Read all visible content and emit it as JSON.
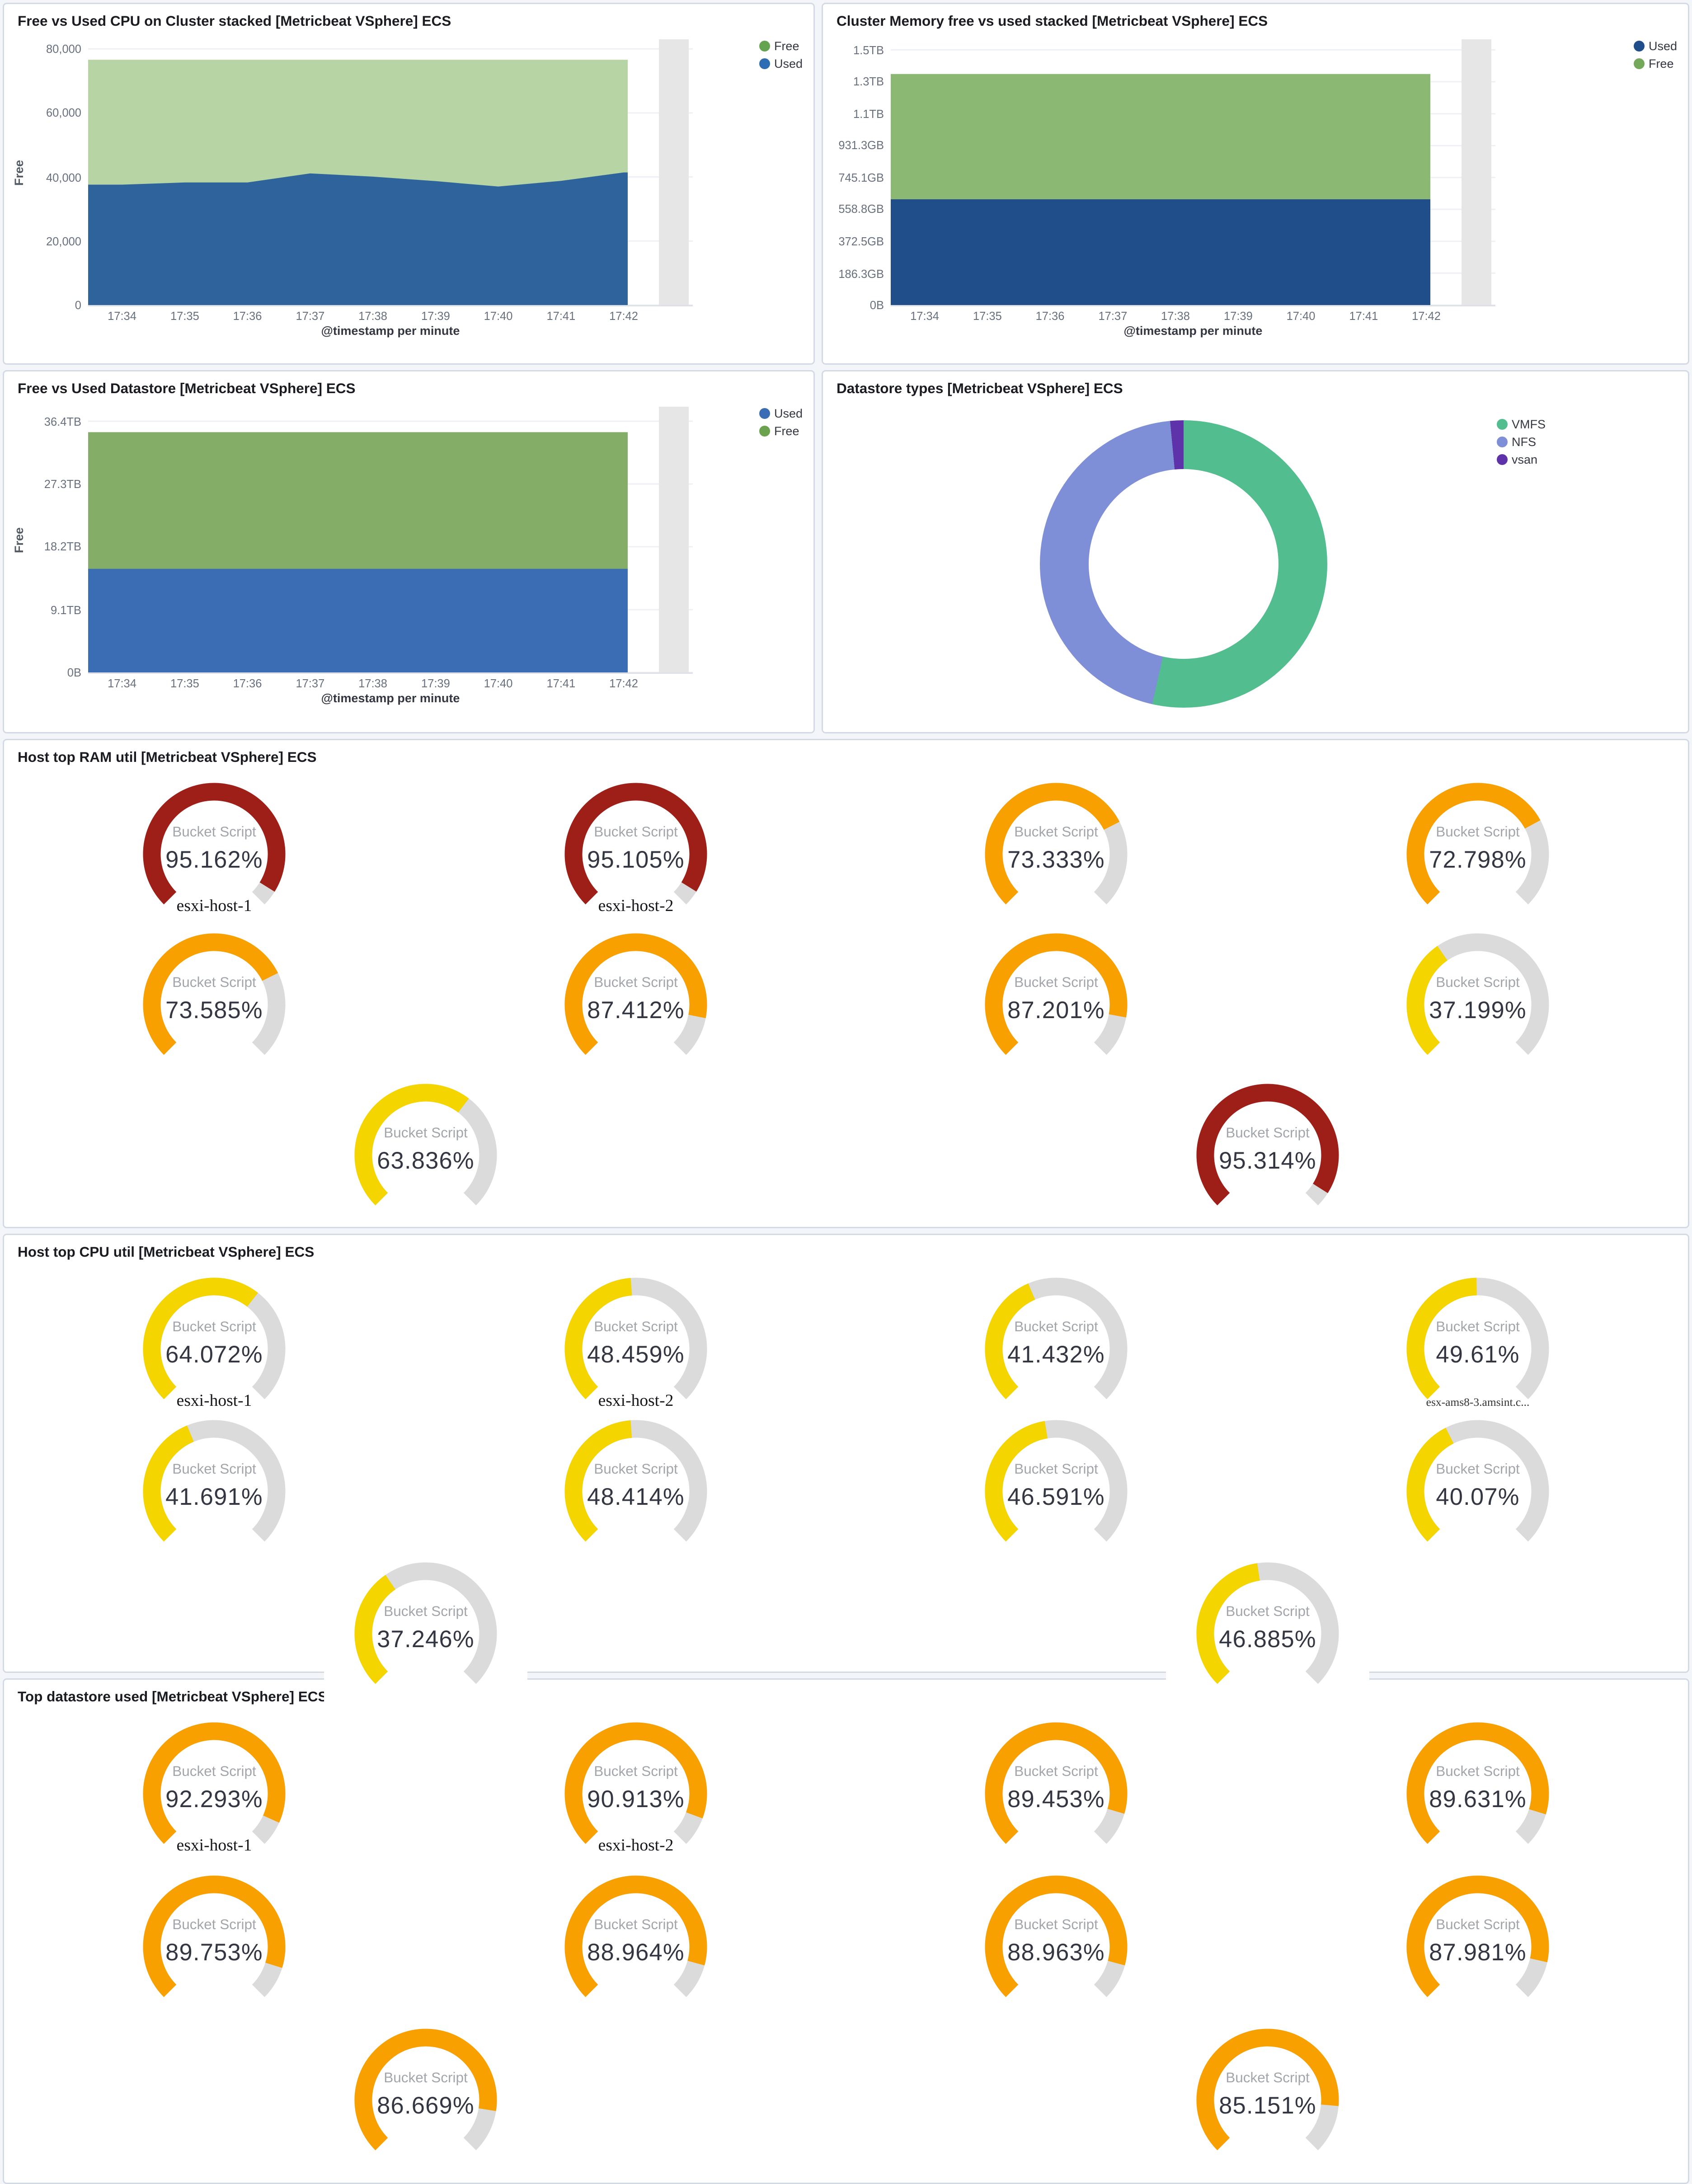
{
  "dashboard": {
    "partial_bucket_color": "#e6e6e6",
    "gauge_track_color": "#dbdbdb"
  },
  "chart_data": [
    {
      "id": "cpu-cluster-stacked",
      "type": "area",
      "title": "Free vs Used CPU on Cluster stacked [Metricbeat VSphere] ECS",
      "x": [
        "17:34",
        "17:35",
        "17:36",
        "17:37",
        "17:38",
        "17:39",
        "17:40",
        "17:41",
        "17:42"
      ],
      "xlabel": "@timestamp per minute",
      "ylabel": "Free",
      "ylim": [
        0,
        83000
      ],
      "grid": true,
      "partial_bucket": true,
      "yticks": [
        {
          "label": "80,000",
          "value": 80000
        },
        {
          "label": "60,000",
          "value": 60000
        },
        {
          "label": "40,000",
          "value": 40000
        },
        {
          "label": "20,000",
          "value": 20000
        },
        {
          "label": "0",
          "value": 0
        }
      ],
      "series": [
        {
          "name": "Used",
          "color": "#2f639b",
          "values": [
            37600,
            38300,
            38300,
            41100,
            40100,
            38700,
            37000,
            38800,
            41400
          ]
        },
        {
          "name": "Free",
          "color": "#b6d4a4",
          "values": [
            39000,
            38300,
            38300,
            35500,
            36500,
            37900,
            39600,
            37800,
            35200
          ]
        }
      ],
      "legend_position": "right",
      "legend": [
        {
          "label": "Free",
          "color": "#64a450"
        },
        {
          "label": "Used",
          "color": "#2f6db3"
        }
      ]
    },
    {
      "id": "cluster-memory-stacked",
      "type": "area",
      "title": "Cluster Memory free vs used stacked [Metricbeat VSphere] ECS",
      "x": [
        "17:34",
        "17:35",
        "17:36",
        "17:37",
        "17:38",
        "17:39",
        "17:40",
        "17:41",
        "17:42"
      ],
      "xlabel": "@timestamp per minute",
      "ylabel": "",
      "ylim": [
        0,
        1552
      ],
      "unit": "GB",
      "grid": true,
      "partial_bucket": true,
      "yticks": [
        {
          "label": "1.5TB",
          "value": 1490.1
        },
        {
          "label": "1.3TB",
          "value": 1303.8
        },
        {
          "label": "1.1TB",
          "value": 1117.6
        },
        {
          "label": "931.3GB",
          "value": 931.3
        },
        {
          "label": "745.1GB",
          "value": 745.1
        },
        {
          "label": "558.8GB",
          "value": 558.8
        },
        {
          "label": "372.5GB",
          "value": 372.5
        },
        {
          "label": "186.3GB",
          "value": 186.3
        },
        {
          "label": "0B",
          "value": 0
        }
      ],
      "series": [
        {
          "name": "Used",
          "color": "#1f4e8a",
          "values": [
            618,
            618,
            618,
            618,
            618,
            618,
            618,
            618,
            618
          ]
        },
        {
          "name": "Free",
          "color": "#8bb974",
          "values": [
            731,
            731,
            731,
            731,
            731,
            731,
            731,
            731,
            731
          ]
        }
      ],
      "legend_position": "right",
      "legend": [
        {
          "label": "Used",
          "color": "#1f4e8a"
        },
        {
          "label": "Free",
          "color": "#74a85a"
        }
      ]
    },
    {
      "id": "datastore-free-used",
      "type": "area",
      "title": "Free vs Used Datastore [Metricbeat VSphere] ECS",
      "x": [
        "17:34",
        "17:35",
        "17:36",
        "17:37",
        "17:38",
        "17:39",
        "17:40",
        "17:41",
        "17:42"
      ],
      "xlabel": "@timestamp per minute",
      "ylabel": "Free",
      "ylim": [
        0,
        38.5
      ],
      "unit": "TB",
      "grid": true,
      "partial_bucket": true,
      "yticks": [
        {
          "label": "36.4TB",
          "value": 36.4
        },
        {
          "label": "27.3TB",
          "value": 27.3
        },
        {
          "label": "18.2TB",
          "value": 18.2
        },
        {
          "label": "9.1TB",
          "value": 9.1
        },
        {
          "label": "0B",
          "value": 0
        }
      ],
      "series": [
        {
          "name": "Used",
          "color": "#3a6db4",
          "values": [
            15.0,
            15.0,
            15.0,
            15.0,
            15.0,
            15.0,
            15.0,
            15.0,
            15.0
          ]
        },
        {
          "name": "Free",
          "color": "#84ae67",
          "values": [
            19.8,
            19.8,
            19.8,
            19.8,
            19.8,
            19.8,
            19.8,
            19.8,
            19.8
          ]
        }
      ],
      "legend_position": "right",
      "legend": [
        {
          "label": "Used",
          "color": "#3a6db4"
        },
        {
          "label": "Free",
          "color": "#6aa24e"
        }
      ]
    },
    {
      "id": "datastore-types",
      "type": "pie",
      "donut": true,
      "title": "Datastore types [Metricbeat VSphere] ECS",
      "legend_position": "right",
      "slices": [
        {
          "label": "VMFS",
          "value": 53.5,
          "color": "#52bd8f"
        },
        {
          "label": "NFS",
          "value": 45.0,
          "color": "#7e8fd8"
        },
        {
          "label": "vsan",
          "value": 1.5,
          "color": "#5e32a8"
        }
      ]
    },
    {
      "id": "host-top-ram-util",
      "type": "gauge",
      "title": "Host top RAM util [Metricbeat VSphere] ECS",
      "metric_label": "Bucket Script",
      "rows": [
        [
          {
            "value": "95.162%",
            "color": "#9e1f18",
            "sublabel": "esxi-host-1"
          },
          {
            "value": "95.105%",
            "color": "#9e1f18",
            "sublabel": "esxi-host-2"
          },
          {
            "value": "73.333%",
            "color": "#f8a000"
          },
          {
            "value": "72.798%",
            "color": "#f8a000"
          }
        ],
        [
          {
            "value": "73.585%",
            "color": "#f8a000"
          },
          {
            "value": "87.412%",
            "color": "#f8a000"
          },
          {
            "value": "87.201%",
            "color": "#f8a000"
          },
          {
            "value": "37.199%",
            "color": "#f5d500"
          }
        ],
        [
          {
            "value": "63.836%",
            "color": "#f5d500"
          },
          {
            "value": "95.314%",
            "color": "#9e1f18"
          }
        ]
      ]
    },
    {
      "id": "host-top-cpu-util",
      "type": "gauge",
      "title": "Host top CPU util [Metricbeat VSphere] ECS",
      "metric_label": "Bucket Script",
      "overflow_boxed": true,
      "rows": [
        [
          {
            "value": "64.072%",
            "color": "#f5d500",
            "sublabel": "esxi-host-1"
          },
          {
            "value": "48.459%",
            "color": "#f5d500",
            "sublabel": "esxi-host-2"
          },
          {
            "value": "41.432%",
            "color": "#f5d500"
          },
          {
            "value": "49.61%",
            "color": "#f5d500",
            "sublabel": "esx-ams8-3.amsint.c..."
          }
        ],
        [
          {
            "value": "41.691%",
            "color": "#f5d500"
          },
          {
            "value": "48.414%",
            "color": "#f5d500"
          },
          {
            "value": "46.591%",
            "color": "#f5d500"
          },
          {
            "value": "40.07%",
            "color": "#f5d500"
          }
        ],
        [
          {
            "value": "37.246%",
            "color": "#f5d500"
          },
          {
            "value": "46.885%",
            "color": "#f5d500"
          }
        ]
      ]
    },
    {
      "id": "top-datastore-used",
      "type": "gauge",
      "title": "Top datastore used [Metricbeat VSphere] ECS",
      "metric_label": "Bucket Script",
      "rows": [
        [
          {
            "value": "92.293%",
            "color": "#f8a000",
            "sublabel": "esxi-host-1"
          },
          {
            "value": "90.913%",
            "color": "#f8a000",
            "sublabel": "esxi-host-2"
          },
          {
            "value": "89.453%",
            "color": "#f8a000"
          },
          {
            "value": "89.631%",
            "color": "#f8a000"
          }
        ],
        [
          {
            "value": "89.753%",
            "color": "#f8a000"
          },
          {
            "value": "88.964%",
            "color": "#f8a000"
          },
          {
            "value": "88.963%",
            "color": "#f8a000"
          },
          {
            "value": "87.981%",
            "color": "#f8a000"
          }
        ],
        [
          {
            "value": "86.669%",
            "color": "#f8a000"
          },
          {
            "value": "85.151%",
            "color": "#f8a000"
          }
        ]
      ]
    }
  ]
}
